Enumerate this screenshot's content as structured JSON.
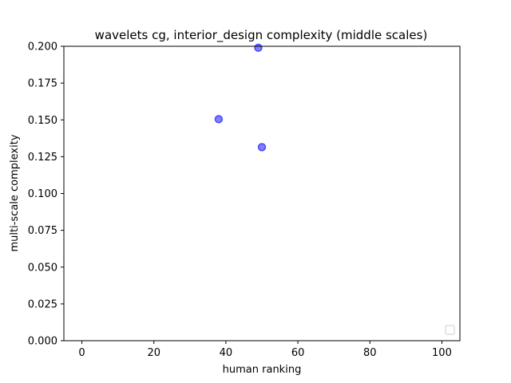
{
  "chart_data": {
    "type": "scatter",
    "title": "wavelets cg, interior_design complexity (middle scales)",
    "xlabel": "human ranking",
    "ylabel": "multi-scale complexity",
    "xlim": [
      -5,
      105
    ],
    "ylim": [
      0,
      0.2
    ],
    "x_ticks": [
      "0",
      "20",
      "40",
      "60",
      "80",
      "100"
    ],
    "y_ticks": [
      "0.000",
      "0.025",
      "0.050",
      "0.075",
      "0.100",
      "0.125",
      "0.150",
      "0.175",
      "0.200"
    ],
    "points": [
      {
        "x": 38,
        "y": 0.1505
      },
      {
        "x": 49,
        "y": 0.199
      },
      {
        "x": 50,
        "y": 0.1315
      }
    ],
    "marker_color": "#0000ff",
    "grid": false,
    "legend": "lower-right, empty"
  }
}
